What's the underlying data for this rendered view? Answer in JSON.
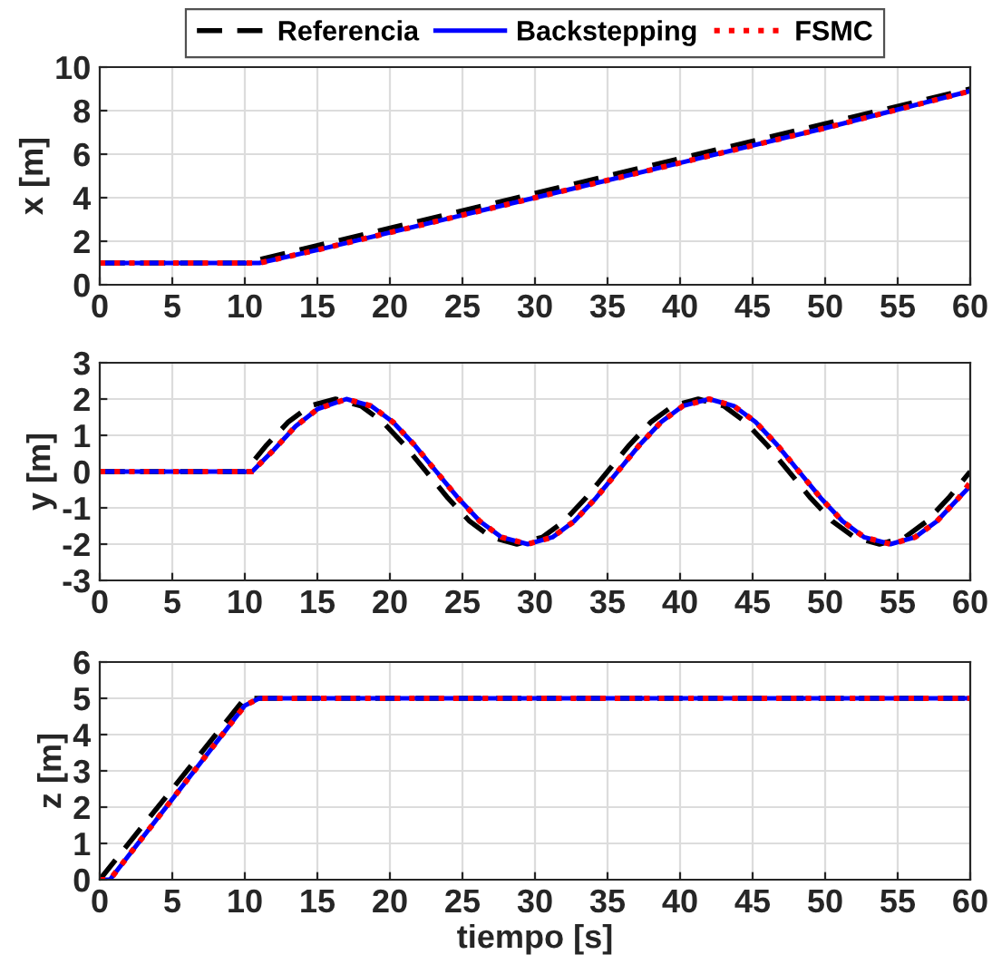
{
  "chart_data": [
    {
      "type": "line",
      "ylabel": "x [m]",
      "xlim": [
        0,
        60
      ],
      "xticks": [
        0,
        5,
        10,
        15,
        20,
        25,
        30,
        35,
        40,
        45,
        50,
        55,
        60
      ],
      "ylim": [
        0,
        10
      ],
      "yticks": [
        0,
        2,
        4,
        6,
        8,
        10
      ],
      "grid": true,
      "legend": "top",
      "series": [
        {
          "name": "Referencia",
          "color": "#000000",
          "line_style": "dashed",
          "x": [
            0,
            10,
            60
          ],
          "values": [
            1,
            1,
            9
          ]
        },
        {
          "name": "Backstepping",
          "color": "#0000ff",
          "line_style": "solid",
          "x": [
            0,
            10,
            11,
            15,
            20,
            30,
            40,
            50,
            60
          ],
          "values": [
            1,
            1,
            1,
            1.6,
            2.4,
            4,
            5.6,
            7.2,
            8.9
          ]
        },
        {
          "name": "FSMC",
          "color": "#ff0000",
          "line_style": "dotted",
          "x": [
            0,
            10,
            11,
            15,
            20,
            30,
            40,
            50,
            60
          ],
          "values": [
            1,
            1,
            1,
            1.6,
            2.4,
            4,
            5.6,
            7.2,
            8.9
          ]
        }
      ]
    },
    {
      "type": "line",
      "ylabel": "y [m]",
      "xlim": [
        0,
        60
      ],
      "xticks": [
        0,
        5,
        10,
        15,
        20,
        25,
        30,
        35,
        40,
        45,
        50,
        55,
        60
      ],
      "ylim": [
        -3,
        3
      ],
      "yticks": [
        -3,
        -2,
        -1,
        0,
        1,
        2,
        3
      ],
      "grid": true,
      "series": [
        {
          "color": "#000000",
          "line_style": "dashed",
          "x": [
            0,
            10,
            11.5,
            13,
            14.5,
            16.25,
            18,
            19.5,
            21,
            22.5,
            24,
            25.5,
            27,
            28.75,
            30.5,
            32,
            33.5,
            35,
            36.5,
            38,
            39.5,
            41.25,
            43,
            44.5,
            46,
            47.5,
            49,
            50.5,
            52,
            53.75,
            55.5,
            57,
            58.5,
            60
          ],
          "values": [
            0,
            0,
            0.73,
            1.37,
            1.81,
            2,
            1.81,
            1.37,
            0.73,
            0,
            -0.73,
            -1.37,
            -1.81,
            -2,
            -1.81,
            -1.37,
            -0.73,
            0,
            0.73,
            1.37,
            1.81,
            2,
            1.81,
            1.37,
            0.73,
            0,
            -0.73,
            -1.37,
            -1.81,
            -2,
            -1.81,
            -1.37,
            -0.73,
            0
          ]
        },
        {
          "color": "#0000ff",
          "line_style": "solid",
          "x": [
            0,
            10.5,
            12,
            13.5,
            15,
            17,
            18.7,
            20.2,
            21.7,
            23.2,
            24.7,
            26.2,
            27.7,
            29.5,
            31.2,
            32.7,
            34.2,
            35.7,
            37.2,
            38.7,
            40.2,
            42,
            43.7,
            45.2,
            46.7,
            48.2,
            49.7,
            51.2,
            52.7,
            54.5,
            56.2,
            57.7,
            59.2,
            60
          ],
          "values": [
            0,
            0,
            0.6,
            1.25,
            1.72,
            2,
            1.81,
            1.37,
            0.73,
            0,
            -0.73,
            -1.37,
            -1.81,
            -2,
            -1.81,
            -1.37,
            -0.73,
            0,
            0.73,
            1.37,
            1.81,
            2,
            1.81,
            1.37,
            0.73,
            0,
            -0.73,
            -1.37,
            -1.81,
            -2,
            -1.81,
            -1.37,
            -0.73,
            -0.4
          ]
        },
        {
          "color": "#ff0000",
          "line_style": "dotted",
          "x": [
            0,
            10.5,
            12,
            13.5,
            15,
            17,
            18.7,
            20.2,
            21.7,
            23.2,
            24.7,
            26.2,
            27.7,
            29.5,
            31.2,
            32.7,
            34.2,
            35.7,
            37.2,
            38.7,
            40.2,
            42,
            43.7,
            45.2,
            46.7,
            48.2,
            49.7,
            51.2,
            52.7,
            54.5,
            56.2,
            57.7,
            59.2,
            60
          ],
          "values": [
            0,
            0,
            0.6,
            1.25,
            1.72,
            2,
            1.81,
            1.37,
            0.73,
            0,
            -0.73,
            -1.37,
            -1.81,
            -2,
            -1.81,
            -1.37,
            -0.73,
            0,
            0.73,
            1.37,
            1.81,
            2,
            1.81,
            1.37,
            0.73,
            0,
            -0.73,
            -1.37,
            -1.81,
            -2,
            -1.81,
            -1.37,
            -0.73,
            -0.3
          ]
        }
      ]
    },
    {
      "type": "line",
      "ylabel": "z [m]",
      "xlabel": "tiempo [s]",
      "xlim": [
        0,
        60
      ],
      "xticks": [
        0,
        5,
        10,
        15,
        20,
        25,
        30,
        35,
        40,
        45,
        50,
        55,
        60
      ],
      "ylim": [
        0,
        6
      ],
      "yticks": [
        0,
        1,
        2,
        3,
        4,
        5,
        6
      ],
      "grid": true,
      "series": [
        {
          "color": "#000000",
          "line_style": "dashed",
          "x": [
            0,
            10,
            60
          ],
          "values": [
            0,
            5,
            5
          ]
        },
        {
          "color": "#0000ff",
          "line_style": "solid",
          "x": [
            0,
            0.7,
            10,
            11,
            60
          ],
          "values": [
            0,
            0,
            4.8,
            5,
            5
          ]
        },
        {
          "color": "#ff0000",
          "line_style": "dotted",
          "x": [
            0,
            0.7,
            10,
            11,
            60
          ],
          "values": [
            0,
            0,
            4.8,
            5,
            5
          ]
        }
      ]
    }
  ]
}
